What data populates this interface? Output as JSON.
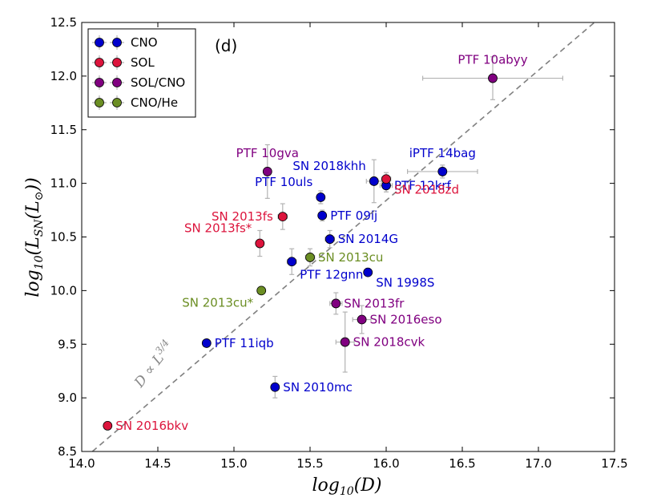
{
  "chart_data": {
    "type": "scatter",
    "panel_label": "(d)",
    "xlabel": "log10(D)",
    "ylabel": "log10(LSN(L⊙))",
    "xlim": [
      14.0,
      17.5
    ],
    "ylim": [
      8.5,
      12.5
    ],
    "xticks": [
      "14.0",
      "14.5",
      "15.0",
      "15.5",
      "16.0",
      "16.5",
      "17.0",
      "17.5"
    ],
    "yticks": [
      "8.5",
      "9.0",
      "9.5",
      "10.0",
      "10.5",
      "11.0",
      "11.5",
      "12.0",
      "12.5"
    ],
    "legend": [
      {
        "name": "CNO",
        "color": "#0000cc"
      },
      {
        "name": "SOL",
        "color": "#dc143c"
      },
      {
        "name": "SOL/CNO",
        "color": "#800080"
      },
      {
        "name": "CNO/He",
        "color": "#6b8e23"
      }
    ],
    "fit_label": "D ∝ L^{3/4}",
    "fit_line": {
      "x": [
        14.07,
        17.5
      ],
      "y": [
        8.5,
        12.66
      ]
    },
    "points": [
      {
        "label": "PTF 10abyy",
        "group": "SOL/CNO",
        "x": 16.7,
        "y": 11.98,
        "xerr": 0.46,
        "yerr": 0.2,
        "label_pos": "above"
      },
      {
        "label": "iPTF 14bag",
        "group": "CNO",
        "x": 16.37,
        "y": 11.11,
        "xerr": 0.23,
        "yerr": 0.06,
        "label_pos": "above"
      },
      {
        "label": "SN 2018khh",
        "group": "CNO",
        "x": 15.92,
        "y": 11.02,
        "xerr": 0.05,
        "yerr": 0.2,
        "label_pos": "above-left"
      },
      {
        "label": "PTF 12krf",
        "group": "CNO",
        "x": 16.0,
        "y": 10.98,
        "xerr": 0.04,
        "yerr": 0.06,
        "label_pos": "right"
      },
      {
        "label": "SN 2018zd",
        "group": "SOL",
        "x": 16.0,
        "y": 11.04,
        "xerr": 0.03,
        "yerr": 0.06,
        "label_pos": "below-right"
      },
      {
        "label": "PTF 10gva",
        "group": "SOL/CNO",
        "x": 15.22,
        "y": 11.11,
        "xerr": 0.01,
        "yerr": 0.25,
        "label_pos": "above"
      },
      {
        "label": "PTF 10uls",
        "group": "CNO",
        "x": 15.57,
        "y": 10.87,
        "xerr": 0.02,
        "yerr": 0.06,
        "label_pos": "above-left"
      },
      {
        "label": "SN 2013fs",
        "group": "SOL",
        "x": 15.32,
        "y": 10.69,
        "xerr": 0.03,
        "yerr": 0.12,
        "label_pos": "left"
      },
      {
        "label": "PTF 09ij",
        "group": "CNO",
        "x": 15.58,
        "y": 10.7,
        "xerr": 0.02,
        "yerr": 0.05,
        "label_pos": "right"
      },
      {
        "label": "SN 2013fs*",
        "group": "SOL",
        "x": 15.17,
        "y": 10.44,
        "xerr": 0.02,
        "yerr": 0.12,
        "label_pos": "above-left"
      },
      {
        "label": "SN 2014G",
        "group": "CNO",
        "x": 15.63,
        "y": 10.48,
        "xerr": 0.03,
        "yerr": 0.08,
        "label_pos": "right"
      },
      {
        "label": "SN 2013cu",
        "group": "CNO/He",
        "x": 15.5,
        "y": 10.31,
        "xerr": 0.03,
        "yerr": 0.08,
        "label_pos": "right"
      },
      {
        "label": "PTF 12gnn",
        "group": "CNO",
        "x": 15.38,
        "y": 10.27,
        "xerr": 0.03,
        "yerr": 0.12,
        "label_pos": "below"
      },
      {
        "label": "SN 1998S",
        "group": "CNO",
        "x": 15.88,
        "y": 10.17,
        "xerr": 0.01,
        "yerr": 0.01,
        "label_pos": "below-right"
      },
      {
        "label": "SN 2013cu*",
        "group": "CNO/He",
        "x": 15.18,
        "y": 10.0,
        "xerr": 0.02,
        "yerr": 0.02,
        "label_pos": "below-left"
      },
      {
        "label": "SN 2013fr",
        "group": "SOL/CNO",
        "x": 15.67,
        "y": 9.88,
        "xerr": 0.04,
        "yerr": 0.1,
        "label_pos": "right"
      },
      {
        "label": "SN 2016eso",
        "group": "SOL/CNO",
        "x": 15.84,
        "y": 9.73,
        "xerr": 0.06,
        "yerr": 0.13,
        "label_pos": "right"
      },
      {
        "label": "PTF 11iqb",
        "group": "CNO",
        "x": 14.82,
        "y": 9.51,
        "xerr": 0.02,
        "yerr": 0.01,
        "label_pos": "right"
      },
      {
        "label": "SN 2018cvk",
        "group": "SOL/CNO",
        "x": 15.73,
        "y": 9.52,
        "xerr": 0.06,
        "yerr": 0.28,
        "label_pos": "right"
      },
      {
        "label": "SN 2010mc",
        "group": "CNO",
        "x": 15.27,
        "y": 9.1,
        "xerr": 0.02,
        "yerr": 0.1,
        "label_pos": "right"
      },
      {
        "label": "SN 2016bkv",
        "group": "SOL",
        "x": 14.17,
        "y": 8.74,
        "xerr": 0.01,
        "yerr": 0.01,
        "label_pos": "right"
      }
    ]
  }
}
